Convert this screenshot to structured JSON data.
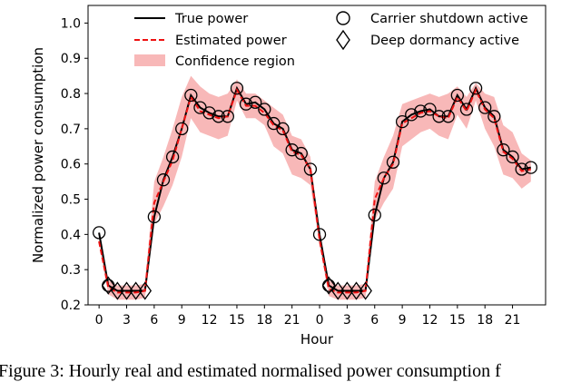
{
  "caption": "Figure 3: Hourly real and estimated normalised power consumption f",
  "chart_data": {
    "type": "line",
    "xlabel": "Hour",
    "ylabel": "Normalized power consumption",
    "ylim": [
      0.2,
      1.05
    ],
    "yticks": [
      "0.2",
      "0.3",
      "0.4",
      "0.5",
      "0.6",
      "0.7",
      "0.8",
      "0.9",
      "1.0"
    ],
    "ytick_values": [
      0.2,
      0.3,
      0.4,
      0.5,
      0.6,
      0.7,
      0.8,
      0.9,
      1.0
    ],
    "xlim": [
      -1.2,
      48.6
    ],
    "xticks": [
      "0",
      "3",
      "6",
      "9",
      "12",
      "15",
      "18",
      "21",
      "0",
      "3",
      "6",
      "9",
      "12",
      "15",
      "18",
      "21"
    ],
    "xtick_positions": [
      0,
      3,
      6,
      9,
      12,
      15,
      18,
      21,
      24,
      27,
      30,
      33,
      36,
      39,
      42,
      45
    ],
    "grid": false,
    "legend_position": "top",
    "legend": {
      "true_power": "True power",
      "estimated_power": "Estimated power",
      "confidence_region": "Confidence region",
      "carrier_shutdown": "Carrier shutdown active",
      "deep_dormancy": "Deep dormancy active"
    },
    "colors": {
      "true": "#000000",
      "estimated": "#ee1111",
      "confidence": "#f8b8b8"
    },
    "x": [
      0,
      1,
      2,
      3,
      4,
      5,
      6,
      7,
      8,
      9,
      10,
      11,
      12,
      13,
      14,
      15,
      16,
      17,
      18,
      19,
      20,
      21,
      22,
      23,
      24,
      25,
      26,
      27,
      28,
      29,
      30,
      31,
      32,
      33,
      34,
      35,
      36,
      37,
      38,
      39,
      40,
      41,
      42,
      43,
      44,
      45,
      46,
      47
    ],
    "series": [
      {
        "name": "True power",
        "values": [
          0.405,
          0.255,
          0.24,
          0.24,
          0.24,
          0.24,
          0.45,
          0.555,
          0.62,
          0.7,
          0.795,
          0.76,
          0.745,
          0.735,
          0.735,
          0.815,
          0.77,
          0.775,
          0.755,
          0.715,
          0.7,
          0.64,
          0.63,
          0.585,
          0.4,
          0.255,
          0.24,
          0.24,
          0.24,
          0.24,
          0.455,
          0.56,
          0.605,
          0.72,
          0.74,
          0.75,
          0.755,
          0.735,
          0.735,
          0.795,
          0.755,
          0.815,
          0.76,
          0.735,
          0.64,
          0.62,
          0.585,
          0.59
        ]
      },
      {
        "name": "Estimated power",
        "values": [
          0.38,
          0.25,
          0.235,
          0.235,
          0.235,
          0.24,
          0.49,
          0.55,
          0.61,
          0.7,
          0.79,
          0.75,
          0.74,
          0.73,
          0.735,
          0.81,
          0.765,
          0.765,
          0.745,
          0.71,
          0.695,
          0.635,
          0.625,
          0.585,
          0.385,
          0.245,
          0.235,
          0.235,
          0.235,
          0.24,
          0.5,
          0.56,
          0.6,
          0.715,
          0.73,
          0.745,
          0.75,
          0.735,
          0.73,
          0.79,
          0.75,
          0.81,
          0.755,
          0.73,
          0.635,
          0.615,
          0.58,
          0.585
        ]
      }
    ],
    "confidence_upper": [
      0.39,
      0.27,
      0.255,
      0.255,
      0.255,
      0.26,
      0.55,
      0.62,
      0.7,
      0.79,
      0.85,
      0.82,
      0.8,
      0.79,
      0.8,
      0.84,
      0.8,
      0.8,
      0.78,
      0.76,
      0.74,
      0.68,
      0.67,
      0.62,
      0.4,
      0.27,
      0.255,
      0.255,
      0.255,
      0.26,
      0.55,
      0.62,
      0.68,
      0.77,
      0.78,
      0.79,
      0.8,
      0.79,
      0.8,
      0.82,
      0.79,
      0.83,
      0.8,
      0.79,
      0.71,
      0.69,
      0.63,
      0.61
    ],
    "confidence_lower": [
      0.37,
      0.23,
      0.215,
      0.215,
      0.215,
      0.22,
      0.43,
      0.48,
      0.54,
      0.62,
      0.73,
      0.69,
      0.68,
      0.67,
      0.68,
      0.78,
      0.73,
      0.73,
      0.71,
      0.65,
      0.63,
      0.57,
      0.56,
      0.54,
      0.37,
      0.225,
      0.215,
      0.215,
      0.215,
      0.22,
      0.44,
      0.49,
      0.53,
      0.65,
      0.67,
      0.69,
      0.7,
      0.68,
      0.67,
      0.74,
      0.7,
      0.78,
      0.7,
      0.65,
      0.57,
      0.56,
      0.53,
      0.55
    ],
    "carrier_shutdown_x": [
      0,
      1,
      6,
      7,
      8,
      9,
      10,
      11,
      12,
      13,
      14,
      15,
      16,
      17,
      18,
      19,
      20,
      21,
      22,
      23,
      24,
      25,
      30,
      31,
      32,
      33,
      34,
      35,
      36,
      37,
      38,
      39,
      40,
      41,
      42,
      43,
      44,
      45,
      46,
      47
    ],
    "deep_dormancy_x": [
      1,
      2,
      3,
      4,
      5,
      25,
      26,
      27,
      28,
      29
    ]
  }
}
